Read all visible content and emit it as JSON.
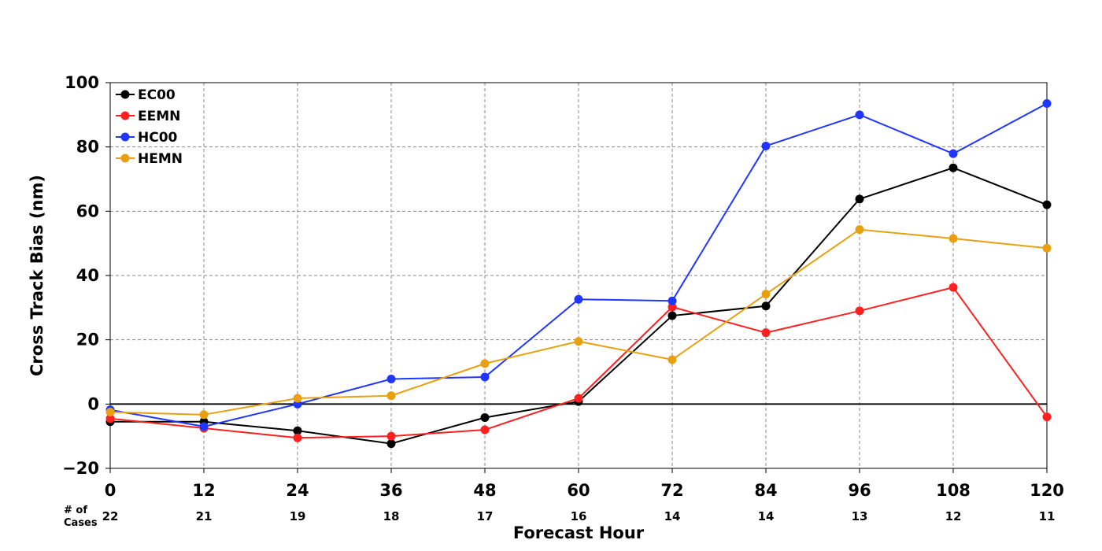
{
  "chart_data": {
    "type": "line",
    "xlabel": "Forecast Hour",
    "ylabel": "Cross Track Bias (nm)",
    "x": [
      0,
      12,
      24,
      36,
      48,
      60,
      72,
      84,
      96,
      108,
      120
    ],
    "x_ticks": [
      "0",
      "12",
      "24",
      "36",
      "48",
      "60",
      "72",
      "84",
      "96",
      "108",
      "120"
    ],
    "xlim": [
      0,
      120
    ],
    "ylim": [
      -20,
      100
    ],
    "y_ticks": [
      -20,
      0,
      20,
      40,
      60,
      80,
      100
    ],
    "y_tick_labels": [
      "−20",
      "0",
      "20",
      "40",
      "60",
      "80",
      "100"
    ],
    "grid": true,
    "zero_line": true,
    "legend_position": "top-left",
    "cases_caption_line1": "# of",
    "cases_caption_line2": "Cases",
    "cases": [
      "22",
      "21",
      "19",
      "18",
      "17",
      "16",
      "14",
      "14",
      "13",
      "12",
      "11"
    ],
    "series": [
      {
        "name": "EC00",
        "color": "#000000",
        "values": [
          -5.5,
          -5.5,
          -8.3,
          -12.3,
          -4.2,
          0.8,
          27.5,
          30.5,
          63.8,
          73.5,
          62.0
        ]
      },
      {
        "name": "EEMN",
        "color": "#ff2020",
        "values": [
          -4.5,
          -7.5,
          -10.5,
          -10.0,
          -8.0,
          1.8,
          30.2,
          22.2,
          29.0,
          36.3,
          -4.0
        ]
      },
      {
        "name": "HC00",
        "color": "#2036ff",
        "values": [
          -1.8,
          -7.0,
          0.0,
          7.8,
          8.4,
          32.6,
          32.1,
          80.3,
          90.0,
          77.9,
          93.5
        ]
      },
      {
        "name": "HEMN",
        "color": "#e8a010",
        "values": [
          -2.5,
          -3.3,
          1.8,
          2.6,
          12.6,
          19.5,
          13.8,
          34.2,
          54.3,
          51.5,
          48.5
        ]
      }
    ]
  }
}
